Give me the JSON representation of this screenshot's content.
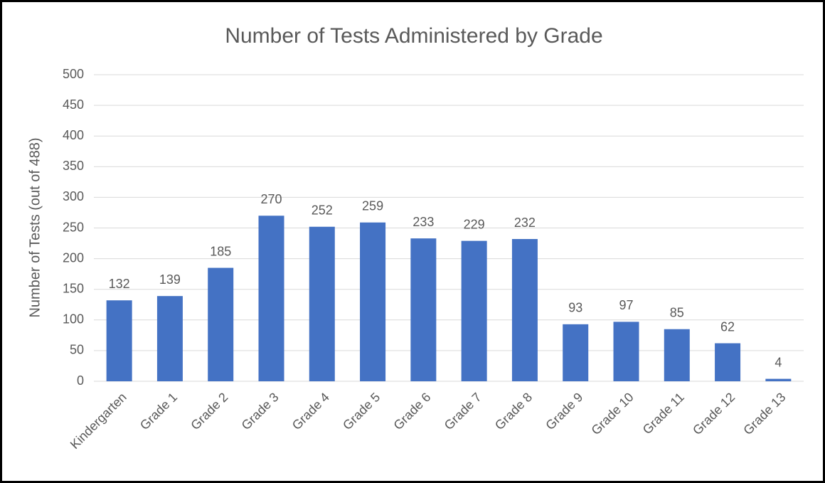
{
  "chart_data": {
    "type": "bar",
    "title": "Number of Tests Administered by Grade",
    "y_label": "Number of Tests (out of 488)",
    "categories": [
      "Kindergarten",
      "Grade 1",
      "Grade 2",
      "Grade 3",
      "Grade 4",
      "Grade 5",
      "Grade 6",
      "Grade 7",
      "Grade 8",
      "Grade 9",
      "Grade 10",
      "Grade 11",
      "Grade 12",
      "Grade 13"
    ],
    "values": [
      132,
      139,
      185,
      270,
      252,
      259,
      233,
      229,
      232,
      93,
      97,
      85,
      62,
      4
    ],
    "color": "#4472c4",
    "ylim": [
      0,
      500
    ],
    "yticks": [
      0,
      50,
      100,
      150,
      200,
      250,
      300,
      350,
      400,
      450,
      500
    ],
    "grid": true
  }
}
